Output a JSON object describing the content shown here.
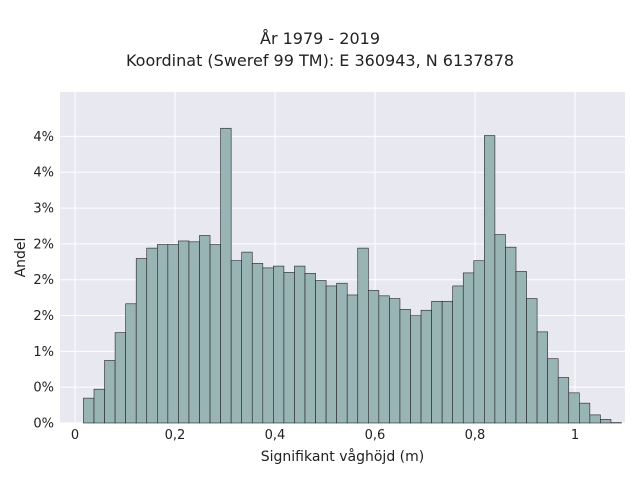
{
  "chart_data": {
    "type": "bar",
    "title_lines": [
      "År 1979 - 2019",
      "Koordinat (Sweref 99 TM): E 360943, N 6137878"
    ],
    "xlabel": "Signifikant våghöjd (m)",
    "ylabel": "Andel",
    "xlim": [
      -0.03,
      1.1
    ],
    "ylim": [
      0,
      0.0462
    ],
    "x_ticks": [
      0,
      0.2,
      0.4,
      0.6,
      0.8,
      1
    ],
    "x_tick_labels": [
      "0",
      "0,2",
      "0,4",
      "0,6",
      "0,8",
      "1"
    ],
    "y_ticks": [
      0,
      0.005,
      0.01,
      0.015,
      0.02,
      0.025,
      0.03,
      0.035,
      0.04
    ],
    "y_tick_labels": [
      "0%",
      "0%",
      "1%",
      "2%",
      "2%",
      "2%",
      "3%",
      "4%",
      "4%"
    ],
    "bin_start": 0.0169,
    "bin_width": 0.0211,
    "values": [
      0.00347,
      0.00472,
      0.00873,
      0.01261,
      0.01664,
      0.02296,
      0.02441,
      0.02491,
      0.02491,
      0.02541,
      0.02529,
      0.02617,
      0.02491,
      0.04114,
      0.02266,
      0.02385,
      0.02228,
      0.02165,
      0.0219,
      0.02102,
      0.0219,
      0.02089,
      0.01989,
      0.01913,
      0.01951,
      0.01787,
      0.02441,
      0.0185,
      0.01775,
      0.01737,
      0.01586,
      0.01498,
      0.01574,
      0.01699,
      0.01699,
      0.01913,
      0.02095,
      0.02265,
      0.04012,
      0.0263,
      0.02454,
      0.02115,
      0.01737,
      0.01272,
      0.00897,
      0.00635,
      0.00421,
      0.00277,
      0.00113,
      0.0005,
      5e-05
    ],
    "bar_color": "#98b4b4",
    "bar_edge_color": "#222222",
    "plot_background": "#e8e8f0",
    "grid": true
  }
}
